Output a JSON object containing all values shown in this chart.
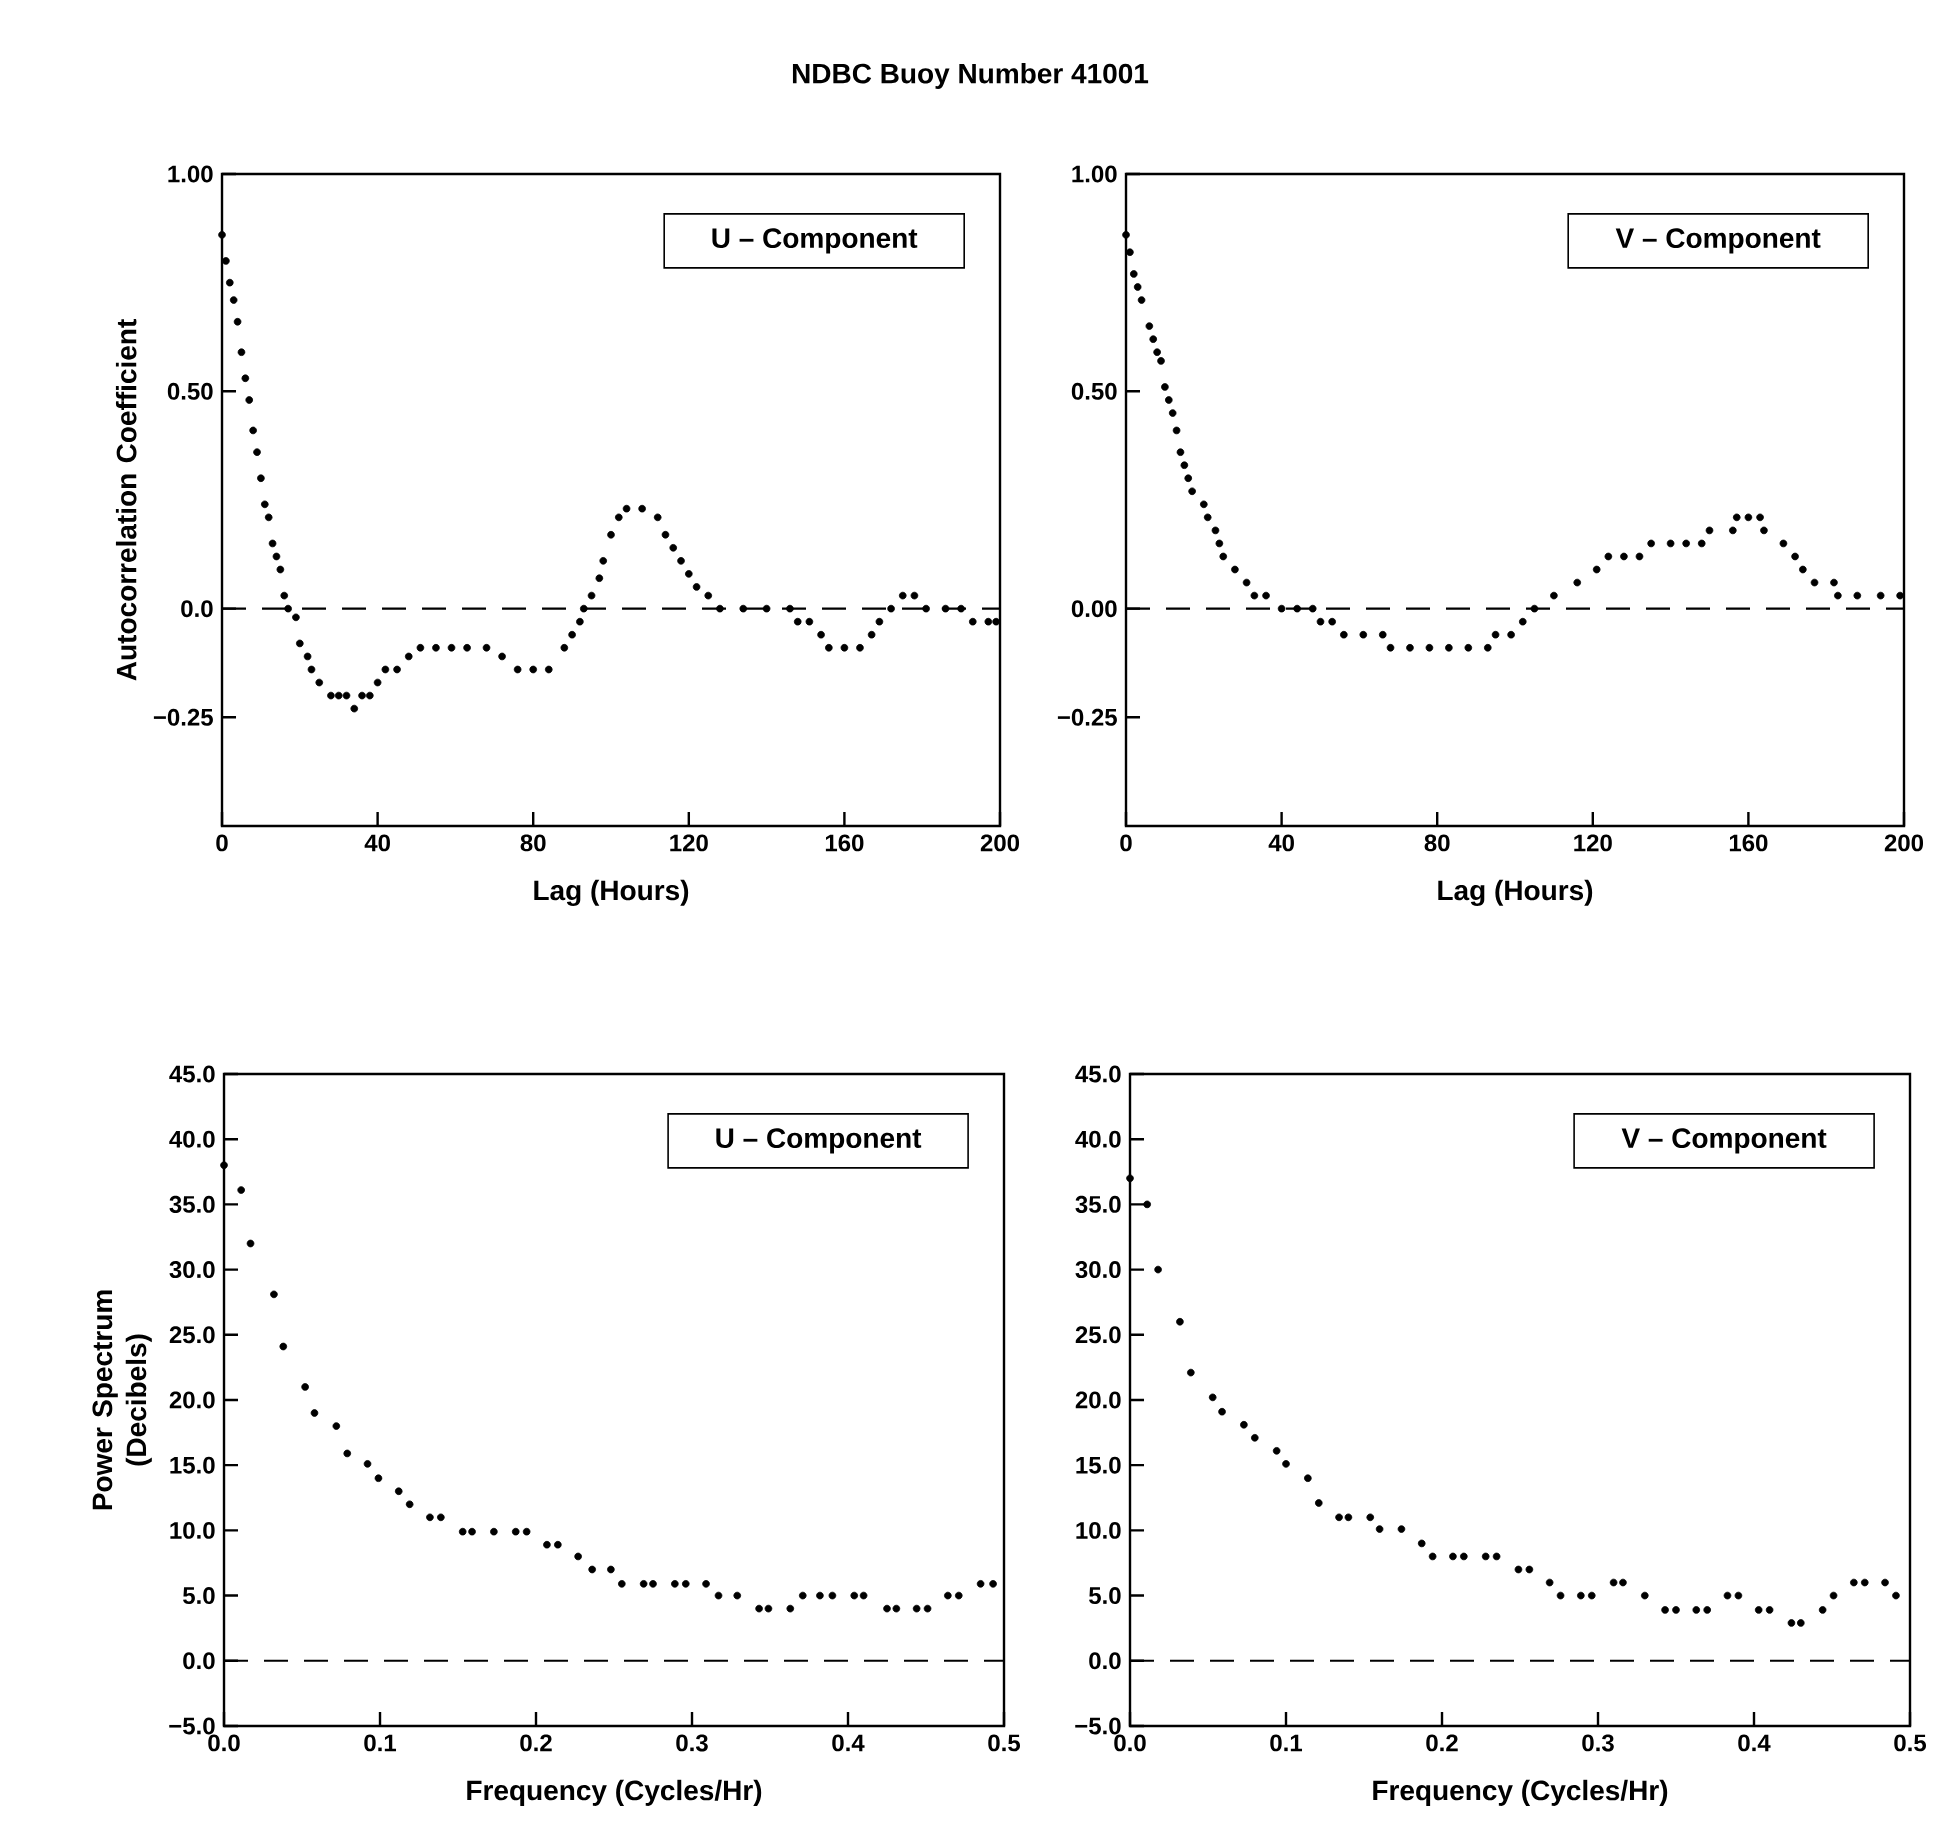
{
  "chart_data": [
    {
      "type": "scatter",
      "title": "NDBC Buoy Number 41001",
      "xlabel": "Lag (Hours)",
      "ylabel": "Autocorrelation Coefficient",
      "annotations": [
        "U – Component"
      ],
      "marker": "circle",
      "color": "#000000",
      "xlim": [
        0,
        200
      ],
      "ylim": [
        -0.5,
        1.0
      ],
      "xticks": [
        0,
        40,
        80,
        120,
        160,
        200
      ],
      "yticks": [
        {
          "value": 1.0,
          "label": "1.00"
        },
        {
          "value": 0.5,
          "label": "0.50"
        },
        {
          "value": 0,
          "label": "0.0"
        },
        {
          "value": -0.25,
          "label": "−0.25"
        }
      ],
      "ref_lines": [
        {
          "axis": "y",
          "value": 0,
          "line_style": "dashed",
          "color": "#000000"
        }
      ],
      "x": [
        0,
        1,
        2,
        3,
        4,
        5,
        6,
        7,
        8,
        9,
        10,
        11,
        12,
        13,
        14,
        15,
        16,
        17,
        19,
        20,
        22,
        23,
        25,
        28,
        30,
        32,
        34,
        36,
        38,
        40,
        42,
        45,
        48,
        51,
        55,
        59,
        63,
        68,
        72,
        76,
        80,
        84,
        88,
        90,
        92,
        93,
        95,
        97,
        98,
        100,
        102,
        104,
        108,
        112,
        114,
        116,
        118,
        120,
        122,
        125,
        128,
        134,
        140,
        146,
        148,
        151,
        154,
        156,
        160,
        164,
        167,
        169,
        172,
        175,
        178,
        181,
        186,
        190,
        193,
        197,
        199
      ],
      "values": [
        0.86,
        0.8,
        0.75,
        0.71,
        0.66,
        0.59,
        0.53,
        0.48,
        0.41,
        0.36,
        0.3,
        0.24,
        0.21,
        0.15,
        0.12,
        0.09,
        0.03,
        0.0,
        -0.02,
        -0.08,
        -0.11,
        -0.14,
        -0.17,
        -0.2,
        -0.2,
        -0.2,
        -0.23,
        -0.2,
        -0.2,
        -0.17,
        -0.14,
        -0.14,
        -0.11,
        -0.09,
        -0.09,
        -0.09,
        -0.09,
        -0.09,
        -0.11,
        -0.14,
        -0.14,
        -0.14,
        -0.09,
        -0.06,
        -0.03,
        0.0,
        0.03,
        0.07,
        0.11,
        0.17,
        0.21,
        0.23,
        0.23,
        0.21,
        0.17,
        0.14,
        0.11,
        0.08,
        0.05,
        0.03,
        0.0,
        0.0,
        0.0,
        0.0,
        -0.03,
        -0.03,
        -0.06,
        -0.09,
        -0.09,
        -0.09,
        -0.06,
        -0.03,
        0.0,
        0.03,
        0.03,
        0.0,
        0.0,
        0.0,
        -0.03,
        -0.03,
        -0.03
      ]
    },
    {
      "type": "scatter",
      "xlabel": "Lag (Hours)",
      "annotations": [
        "V – Component"
      ],
      "marker": "circle",
      "color": "#000000",
      "xlim": [
        0,
        200
      ],
      "ylim": [
        -0.5,
        1.0
      ],
      "xticks": [
        0,
        40,
        80,
        120,
        160,
        200
      ],
      "yticks": [
        {
          "value": 1.0,
          "label": "1.00"
        },
        {
          "value": 0.5,
          "label": "0.50"
        },
        {
          "value": 0,
          "label": "0.00"
        },
        {
          "value": -0.25,
          "label": "−0.25"
        }
      ],
      "ref_lines": [
        {
          "axis": "y",
          "value": 0,
          "line_style": "dashed",
          "color": "#000000"
        }
      ],
      "x": [
        0,
        1,
        2,
        3,
        4,
        6,
        7,
        8,
        9,
        10,
        11,
        12,
        13,
        14,
        15,
        16,
        17,
        20,
        21,
        23,
        24,
        25,
        28,
        31,
        33,
        36,
        40,
        44,
        48,
        50,
        53,
        56,
        61,
        66,
        68,
        73,
        78,
        83,
        88,
        93,
        95,
        99,
        102,
        105,
        110,
        116,
        121,
        124,
        128,
        132,
        135,
        140,
        144,
        148,
        150,
        156,
        157,
        160,
        163,
        164,
        169,
        172,
        174,
        177,
        182,
        183,
        188,
        194,
        199
      ],
      "values": [
        0.86,
        0.82,
        0.77,
        0.74,
        0.71,
        0.65,
        0.62,
        0.59,
        0.57,
        0.51,
        0.48,
        0.45,
        0.41,
        0.36,
        0.33,
        0.3,
        0.27,
        0.24,
        0.21,
        0.18,
        0.15,
        0.12,
        0.09,
        0.06,
        0.03,
        0.03,
        0.0,
        0.0,
        0.0,
        -0.03,
        -0.03,
        -0.06,
        -0.06,
        -0.06,
        -0.09,
        -0.09,
        -0.09,
        -0.09,
        -0.09,
        -0.09,
        -0.06,
        -0.06,
        -0.03,
        0.0,
        0.03,
        0.06,
        0.09,
        0.12,
        0.12,
        0.12,
        0.15,
        0.15,
        0.15,
        0.15,
        0.18,
        0.18,
        0.21,
        0.21,
        0.21,
        0.18,
        0.15,
        0.12,
        0.09,
        0.06,
        0.06,
        0.03,
        0.03,
        0.03,
        0.03
      ]
    },
    {
      "type": "scatter",
      "xlabel": "Frequency (Cycles/Hr)",
      "ylabel": "Power Spectrum (Decibels)",
      "annotations": [
        "U – Component"
      ],
      "marker": "circle",
      "color": "#000000",
      "xlim": [
        0,
        0.5
      ],
      "ylim": [
        -5,
        45
      ],
      "xticks": [
        {
          "value": 0,
          "label": "0.0"
        },
        0.1,
        0.2,
        0.3,
        0.4,
        0.5
      ],
      "yticks": [
        {
          "value": -5,
          "label": "−5.0"
        },
        {
          "value": 0,
          "label": "0.0"
        },
        {
          "value": 5,
          "label": "5.0"
        },
        {
          "value": 10,
          "label": "10.0"
        },
        {
          "value": 15,
          "label": "15.0"
        },
        {
          "value": 20,
          "label": "20.0"
        },
        {
          "value": 25,
          "label": "25.0"
        },
        {
          "value": 30,
          "label": "30.0"
        },
        {
          "value": 35,
          "label": "35.0"
        },
        {
          "value": 40,
          "label": "40.0"
        },
        {
          "value": 45,
          "label": "45.0"
        }
      ],
      "ref_lines": [
        {
          "axis": "y",
          "value": 0,
          "line_style": "dashed",
          "color": "#000000"
        }
      ],
      "x": [
        0,
        0.011,
        0.017,
        0.032,
        0.038,
        0.052,
        0.058,
        0.072,
        0.079,
        0.092,
        0.099,
        0.112,
        0.119,
        0.132,
        0.139,
        0.153,
        0.159,
        0.173,
        0.187,
        0.194,
        0.207,
        0.214,
        0.227,
        0.236,
        0.248,
        0.255,
        0.269,
        0.275,
        0.289,
        0.296,
        0.309,
        0.317,
        0.329,
        0.343,
        0.349,
        0.363,
        0.371,
        0.382,
        0.39,
        0.404,
        0.41,
        0.425,
        0.431,
        0.444,
        0.451,
        0.464,
        0.471,
        0.485,
        0.493
      ],
      "values": [
        38.0,
        36.1,
        32.0,
        28.1,
        24.1,
        21.0,
        19.0,
        18.0,
        15.9,
        15.1,
        14.0,
        13.0,
        12.0,
        11.0,
        11.0,
        9.9,
        9.9,
        9.9,
        9.9,
        9.9,
        8.9,
        8.9,
        8.0,
        7.0,
        7.0,
        5.9,
        5.9,
        5.9,
        5.9,
        5.9,
        5.9,
        5.0,
        5.0,
        4.0,
        4.0,
        4.0,
        5.0,
        5.0,
        5.0,
        5.0,
        5.0,
        4.0,
        4.0,
        4.0,
        4.0,
        5.0,
        5.0,
        5.9,
        5.9
      ]
    },
    {
      "type": "scatter",
      "xlabel": "Frequency (Cycles/Hr)",
      "annotations": [
        "V – Component"
      ],
      "marker": "circle",
      "color": "#000000",
      "xlim": [
        0,
        0.5
      ],
      "ylim": [
        -5,
        45
      ],
      "xticks": [
        {
          "value": 0,
          "label": "0.0"
        },
        0.1,
        0.2,
        0.3,
        0.4,
        0.5
      ],
      "yticks": [
        {
          "value": -5,
          "label": "−5.0"
        },
        {
          "value": 0,
          "label": "0.0"
        },
        {
          "value": 5,
          "label": "5.0"
        },
        {
          "value": 10,
          "label": "10.0"
        },
        {
          "value": 15,
          "label": "15.0"
        },
        {
          "value": 20,
          "label": "20.0"
        },
        {
          "value": 25,
          "label": "25.0"
        },
        {
          "value": 30,
          "label": "30.0"
        },
        {
          "value": 35,
          "label": "35.0"
        },
        {
          "value": 40,
          "label": "40.0"
        },
        {
          "value": 45,
          "label": "45.0"
        }
      ],
      "ref_lines": [
        {
          "axis": "y",
          "value": 0,
          "line_style": "dashed",
          "color": "#000000"
        }
      ],
      "x": [
        0,
        0.011,
        0.018,
        0.032,
        0.039,
        0.053,
        0.059,
        0.073,
        0.08,
        0.094,
        0.1,
        0.114,
        0.121,
        0.134,
        0.14,
        0.154,
        0.16,
        0.174,
        0.187,
        0.194,
        0.207,
        0.214,
        0.228,
        0.235,
        0.249,
        0.256,
        0.269,
        0.276,
        0.289,
        0.296,
        0.31,
        0.316,
        0.33,
        0.343,
        0.35,
        0.363,
        0.37,
        0.383,
        0.39,
        0.403,
        0.41,
        0.424,
        0.43,
        0.444,
        0.451,
        0.464,
        0.471,
        0.484,
        0.491
      ],
      "values": [
        37.0,
        35.0,
        30.0,
        26.0,
        22.1,
        20.2,
        19.1,
        18.1,
        17.1,
        16.1,
        15.1,
        14.0,
        12.1,
        11.0,
        11.0,
        11.0,
        10.1,
        10.1,
        9.0,
        8.0,
        8.0,
        8.0,
        8.0,
        8.0,
        7.0,
        7.0,
        6.0,
        5.0,
        5.0,
        5.0,
        6.0,
        6.0,
        5.0,
        3.9,
        3.9,
        3.9,
        3.9,
        5.0,
        5.0,
        3.9,
        3.9,
        2.9,
        2.9,
        3.9,
        5.0,
        6.0,
        6.0,
        6.0,
        5.0
      ]
    }
  ]
}
